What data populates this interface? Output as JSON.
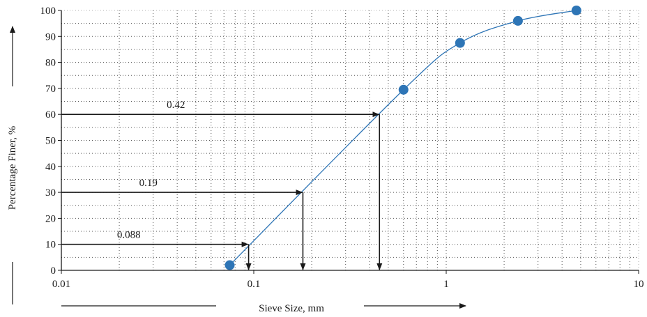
{
  "chart_data": {
    "type": "scatter",
    "x_scale": "log",
    "xlim": [
      0.01,
      10
    ],
    "ylim": [
      0,
      100
    ],
    "xlabel": "Sieve Size, mm",
    "ylabel": "Percentage Finer, %",
    "x_tick_labels": [
      "0.01",
      "0.1",
      "1",
      "10"
    ],
    "y_tick_labels": [
      "0",
      "10",
      "20",
      "30",
      "40",
      "50",
      "60",
      "70",
      "80",
      "90",
      "100"
    ],
    "grid": true,
    "series": [
      {
        "points": [
          {
            "x": 0.075,
            "y": 2
          },
          {
            "x": 0.6,
            "y": 69.5
          },
          {
            "x": 1.18,
            "y": 87.5
          },
          {
            "x": 2.36,
            "y": 96
          },
          {
            "x": 4.75,
            "y": 100
          }
        ],
        "color": "#2e75b6"
      }
    ],
    "annotations": [
      {
        "label": "0.088",
        "x": 0.094,
        "y": 10
      },
      {
        "label": "0.19",
        "x": 0.18,
        "y": 30
      },
      {
        "label": "0.42",
        "x": 0.45,
        "y": 60
      }
    ]
  }
}
